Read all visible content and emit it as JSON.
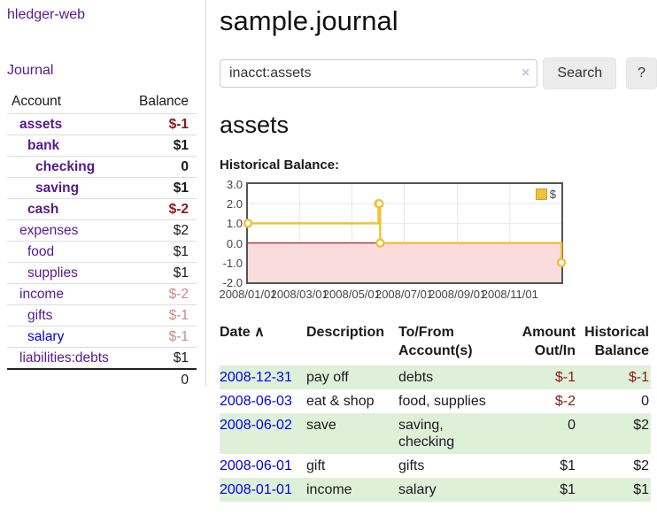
{
  "app": {
    "brand": "hledger-web",
    "nav_journal": "Journal"
  },
  "sidebar": {
    "header": {
      "account": "Account",
      "balance": "Balance"
    },
    "accounts": [
      {
        "name": "assets",
        "balance": "$-1",
        "indent": 1,
        "bold": true,
        "neg": "strong"
      },
      {
        "name": "bank",
        "balance": "$1",
        "indent": 2,
        "bold": true,
        "neg": "none"
      },
      {
        "name": "checking",
        "balance": "0",
        "indent": 3,
        "bold": true,
        "neg": "none"
      },
      {
        "name": "saving",
        "balance": "$1",
        "indent": 3,
        "bold": true,
        "neg": "none"
      },
      {
        "name": "cash",
        "balance": "$-2",
        "indent": 2,
        "bold": true,
        "neg": "strong"
      },
      {
        "name": "expenses",
        "balance": "$2",
        "indent": 1,
        "bold": false,
        "neg": "none"
      },
      {
        "name": "food",
        "balance": "$1",
        "indent": 2,
        "bold": false,
        "neg": "none"
      },
      {
        "name": "supplies",
        "balance": "$1",
        "indent": 2,
        "bold": false,
        "neg": "none"
      },
      {
        "name": "income",
        "balance": "$-2",
        "indent": 1,
        "bold": false,
        "neg": "faded"
      },
      {
        "name": "gifts",
        "balance": "$-1",
        "indent": 2,
        "bold": false,
        "neg": "faded"
      },
      {
        "name": "salary",
        "balance": "$-1",
        "indent": 2,
        "bold": false,
        "neg": "faded",
        "link_color": "blue"
      },
      {
        "name": "liabilities:debts",
        "balance": "$1",
        "indent": 1,
        "bold": false,
        "neg": "none"
      }
    ],
    "total": "0"
  },
  "header": {
    "title": "sample.journal"
  },
  "search": {
    "value": "inacct:assets",
    "clear_label": "×",
    "button": "Search",
    "help_button": "?"
  },
  "account_page": {
    "heading": "assets",
    "chart_label": "Historical Balance:"
  },
  "chart_data": {
    "type": "line",
    "step": true,
    "title": "Historical Balance",
    "series": [
      {
        "name": "$",
        "color": "#edc240",
        "points": [
          [
            "2008-01-01",
            1
          ],
          [
            "2008-06-01",
            2
          ],
          [
            "2008-06-02",
            2
          ],
          [
            "2008-06-03",
            0
          ],
          [
            "2008-12-31",
            -1
          ]
        ]
      }
    ],
    "xlim": [
      "2008-01-01",
      "2008-12-31"
    ],
    "ylim": [
      -2,
      3
    ],
    "x_ticks": [
      "2008/01/01",
      "2008/03/01",
      "2008/05/01",
      "2008/07/01",
      "2008/09/01",
      "2008/11/01"
    ],
    "y_ticks": [
      "3.0",
      "2.0",
      "1.0",
      "0.0",
      "-1.0",
      "-2.0"
    ],
    "legend": {
      "label": "$",
      "position": "top-right",
      "swatch_color": "#edc240",
      "swatch_border": "#cda21c"
    },
    "grid": true,
    "grid_color": "#e7e7e7",
    "border_color": "#545454",
    "zero_line_color": "#7a0000",
    "negative_region_fill": "#fbdcdc",
    "marker": {
      "shape": "circle",
      "fill": "#ffffff",
      "radius": 4
    }
  },
  "register": {
    "columns": [
      "Date",
      "Description",
      "To/From Account(s)",
      "Amount Out/In",
      "Historical Balance"
    ],
    "sort_indicator": "∧",
    "rows": [
      {
        "date": "2008-12-31",
        "description": "pay off",
        "accounts": "debts",
        "amount": "$-1",
        "amount_negative": true,
        "balance": "$-1",
        "balance_negative": true
      },
      {
        "date": "2008-06-03",
        "description": "eat & shop",
        "accounts": "food, supplies",
        "amount": "$-2",
        "amount_negative": true,
        "balance": "0",
        "balance_negative": false
      },
      {
        "date": "2008-06-02",
        "description": "save",
        "accounts": "saving, checking",
        "amount": "0",
        "amount_negative": false,
        "balance": "$2",
        "balance_negative": false
      },
      {
        "date": "2008-06-01",
        "description": "gift",
        "accounts": "gifts",
        "amount": "$1",
        "amount_negative": false,
        "balance": "$2",
        "balance_negative": false
      },
      {
        "date": "2008-01-01",
        "description": "income",
        "accounts": "salary",
        "amount": "$1",
        "amount_negative": false,
        "balance": "$1",
        "balance_negative": false
      }
    ]
  }
}
